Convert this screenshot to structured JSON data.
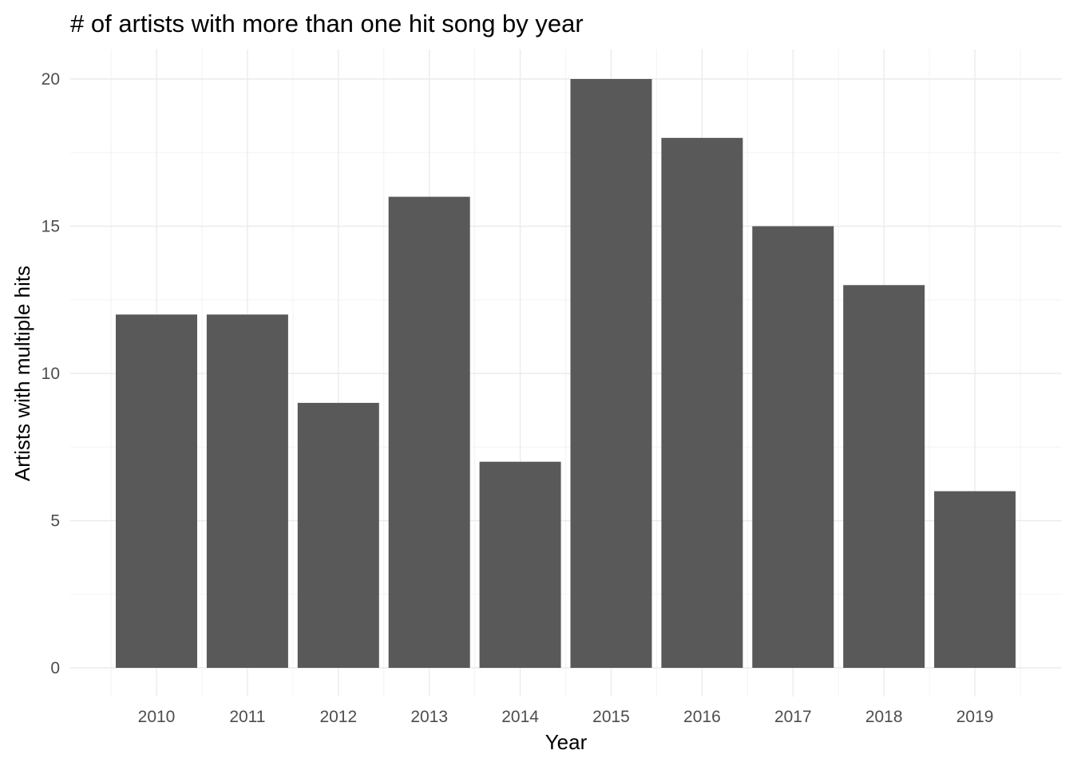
{
  "chart_data": {
    "type": "bar",
    "title": "# of artists with more than one hit song by year",
    "xlabel": "Year",
    "ylabel": "Artists with multiple hits",
    "categories": [
      "2010",
      "2011",
      "2012",
      "2013",
      "2014",
      "2015",
      "2016",
      "2017",
      "2018",
      "2019"
    ],
    "values": [
      12,
      12,
      9,
      16,
      7,
      20,
      18,
      15,
      13,
      6
    ],
    "ylim": [
      0,
      20
    ],
    "yticks": [
      "0",
      "5",
      "10",
      "15",
      "20"
    ],
    "grid": true,
    "legend": "none",
    "bar_color": "#595959",
    "grid_color": "#ebebeb"
  }
}
